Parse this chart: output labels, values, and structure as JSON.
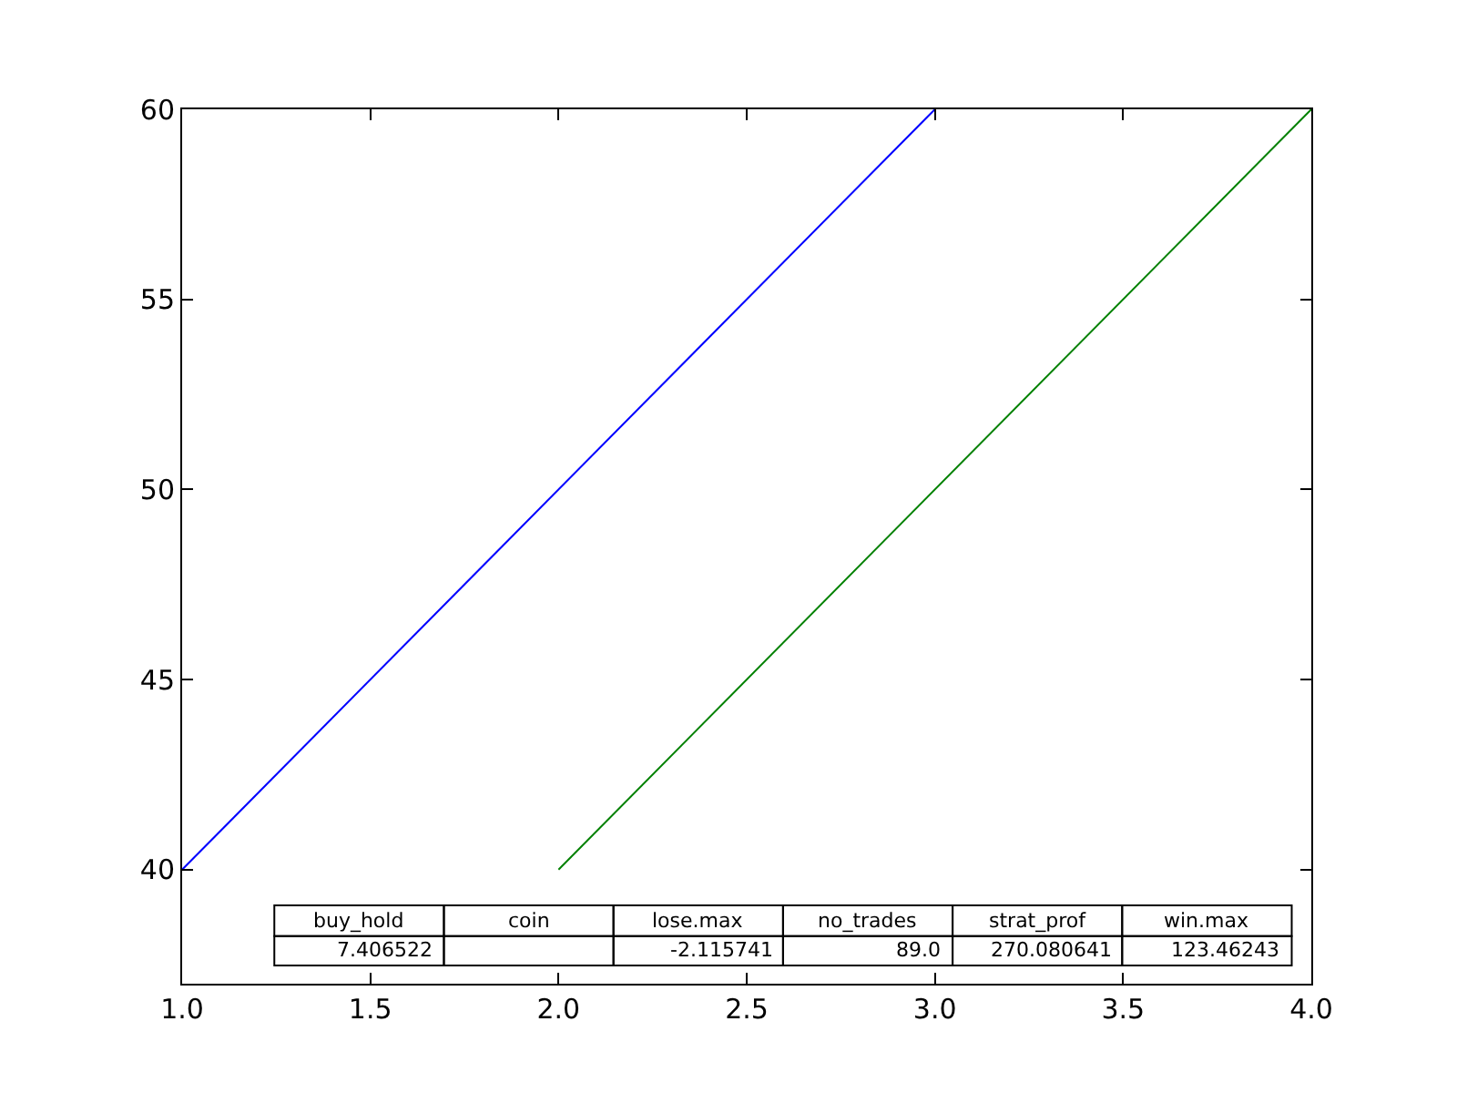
{
  "chart_data": {
    "type": "line",
    "series": [
      {
        "color": "#0000ff",
        "x": [
          1,
          3
        ],
        "values": [
          40,
          60
        ]
      },
      {
        "color": "#008000",
        "x": [
          2,
          4
        ],
        "values": [
          40,
          60
        ]
      }
    ],
    "xlim": [
      1,
      4
    ],
    "xticks": [
      {
        "value": 1,
        "label": "1.0"
      },
      {
        "value": 1.5,
        "label": "1.5"
      },
      {
        "value": 2,
        "label": "2.0"
      },
      {
        "value": 2.5,
        "label": "2.5"
      },
      {
        "value": 3,
        "label": "3.0"
      },
      {
        "value": 3.5,
        "label": "3.5"
      },
      {
        "value": 4,
        "label": "4.0"
      }
    ],
    "ylim": [
      37,
      60
    ],
    "yticks": [
      40,
      45,
      50,
      55,
      60
    ],
    "marker": "none",
    "line_style": "solid",
    "annotations": [
      "buy_hold",
      "coin",
      "lose.max",
      "no_trades",
      "strat_prof",
      "win.max",
      "7.406522",
      "-2.115741",
      "89.0",
      "270.080641",
      "123.46243"
    ]
  }
}
